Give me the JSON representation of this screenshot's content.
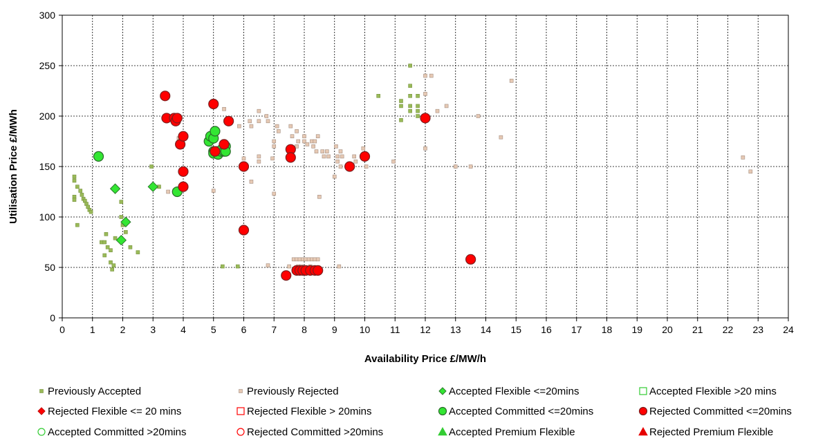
{
  "chart_data": {
    "type": "scatter",
    "xlabel": "Availability Price £/MW/h",
    "ylabel": "Utilisation Price £/MWh",
    "xlim": [
      0,
      24
    ],
    "ylim": [
      0,
      300
    ],
    "x_ticks": [
      0,
      1,
      2,
      3,
      4,
      5,
      6,
      7,
      8,
      9,
      10,
      11,
      12,
      13,
      14,
      15,
      16,
      17,
      18,
      19,
      20,
      21,
      22,
      23,
      24
    ],
    "y_ticks": [
      0,
      50,
      100,
      150,
      200,
      250,
      300
    ],
    "grid": true,
    "legend_position": "bottom",
    "series": [
      {
        "name": "Previously Accepted",
        "marker": "square-small",
        "color": "#9aba59",
        "stroke": "#76923c",
        "points": [
          [
            0.4,
            140
          ],
          [
            0.4,
            136
          ],
          [
            0.4,
            120
          ],
          [
            0.4,
            117
          ],
          [
            0.5,
            130
          ],
          [
            0.5,
            92
          ],
          [
            0.6,
            126
          ],
          [
            0.65,
            122
          ],
          [
            0.7,
            118
          ],
          [
            0.75,
            116
          ],
          [
            0.8,
            113
          ],
          [
            0.85,
            110
          ],
          [
            0.9,
            107
          ],
          [
            0.95,
            105
          ],
          [
            1.3,
            75
          ],
          [
            1.4,
            75
          ],
          [
            1.45,
            83
          ],
          [
            1.4,
            62
          ],
          [
            1.5,
            70
          ],
          [
            1.6,
            67
          ],
          [
            1.6,
            55
          ],
          [
            1.65,
            48
          ],
          [
            1.7,
            52
          ],
          [
            1.75,
            79
          ],
          [
            1.95,
            115
          ],
          [
            1.95,
            100
          ],
          [
            2.0,
            92
          ],
          [
            2.1,
            85
          ],
          [
            2.25,
            70
          ],
          [
            2.5,
            65
          ],
          [
            2.95,
            150
          ],
          [
            3.2,
            130
          ],
          [
            5.3,
            51
          ],
          [
            5.8,
            51
          ],
          [
            10.45,
            220
          ],
          [
            11.2,
            215
          ],
          [
            11.2,
            210
          ],
          [
            11.2,
            196
          ],
          [
            11.5,
            250
          ],
          [
            11.5,
            230
          ],
          [
            11.5,
            220
          ],
          [
            11.5,
            210
          ],
          [
            11.5,
            205
          ],
          [
            11.75,
            220
          ],
          [
            11.75,
            210
          ],
          [
            11.75,
            205
          ],
          [
            11.75,
            200
          ]
        ]
      },
      {
        "name": "Previously Rejected",
        "marker": "square-small",
        "color": "#e6c9b4",
        "stroke": "#a48e80",
        "points": [
          [
            3.5,
            125
          ],
          [
            3.85,
            178
          ],
          [
            5.0,
            126
          ],
          [
            5.35,
            207
          ],
          [
            5.45,
            196
          ],
          [
            5.85,
            190
          ],
          [
            6.0,
            158
          ],
          [
            6.2,
            195
          ],
          [
            6.25,
            190
          ],
          [
            6.25,
            135
          ],
          [
            6.5,
            195
          ],
          [
            6.5,
            205
          ],
          [
            6.5,
            160
          ],
          [
            6.5,
            155
          ],
          [
            6.75,
            200
          ],
          [
            6.8,
            195
          ],
          [
            6.8,
            52
          ],
          [
            6.95,
            158
          ],
          [
            7.0,
            175
          ],
          [
            7.0,
            170
          ],
          [
            7.0,
            123
          ],
          [
            7.1,
            190
          ],
          [
            7.15,
            185
          ],
          [
            7.55,
            190
          ],
          [
            7.6,
            180
          ],
          [
            7.75,
            185
          ],
          [
            7.8,
            175
          ],
          [
            7.75,
            170
          ],
          [
            8.0,
            180
          ],
          [
            8.0,
            175
          ],
          [
            8.1,
            172
          ],
          [
            8.25,
            175
          ],
          [
            8.3,
            170
          ],
          [
            8.35,
            175
          ],
          [
            8.45,
            180
          ],
          [
            8.4,
            165
          ],
          [
            8.5,
            120
          ],
          [
            8.6,
            165
          ],
          [
            8.65,
            160
          ],
          [
            8.75,
            165
          ],
          [
            8.8,
            160
          ],
          [
            9.0,
            140
          ],
          [
            9.05,
            170
          ],
          [
            9.1,
            160
          ],
          [
            9.1,
            155
          ],
          [
            9.2,
            165
          ],
          [
            9.2,
            150
          ],
          [
            9.25,
            160
          ],
          [
            9.6,
            150
          ],
          [
            9.65,
            160
          ],
          [
            9.7,
            155
          ],
          [
            9.95,
            168
          ],
          [
            10.0,
            160
          ],
          [
            10.05,
            150
          ],
          [
            10.95,
            155
          ],
          [
            12.0,
            240
          ],
          [
            12.0,
            222
          ],
          [
            12.0,
            168
          ],
          [
            12.2,
            240
          ],
          [
            12.4,
            205
          ],
          [
            12.7,
            210
          ],
          [
            13.0,
            150
          ],
          [
            13.5,
            150
          ],
          [
            13.75,
            200
          ],
          [
            14.5,
            179
          ],
          [
            14.85,
            235
          ],
          [
            22.5,
            159
          ],
          [
            22.75,
            145
          ],
          [
            7.5,
            51
          ],
          [
            7.65,
            58
          ],
          [
            7.75,
            58
          ],
          [
            7.85,
            58
          ],
          [
            7.95,
            58
          ],
          [
            8.05,
            58
          ],
          [
            8.15,
            58
          ],
          [
            8.25,
            58
          ],
          [
            8.35,
            58
          ],
          [
            8.45,
            58
          ],
          [
            7.8,
            51
          ],
          [
            7.9,
            51
          ],
          [
            8.2,
            51
          ],
          [
            9.15,
            51
          ]
        ]
      },
      {
        "name": "Accepted Flexible <=20mins",
        "marker": "diamond",
        "color": "#33e633",
        "stroke": "#2a7a2a",
        "points": [
          [
            1.75,
            128
          ],
          [
            1.95,
            77
          ],
          [
            2.1,
            95
          ],
          [
            3.0,
            130
          ]
        ]
      },
      {
        "name": "Accepted Flexible >20 mins",
        "marker": "square-open",
        "color": "#33e633",
        "stroke": "#33cc33",
        "points": []
      },
      {
        "name": "Rejected Flexible <= 20 mins",
        "marker": "diamond",
        "color": "#ff0000",
        "stroke": "#c00000",
        "points": []
      },
      {
        "name": "Rejected Flexible > 20mins",
        "marker": "square-open",
        "color": "#ff0000",
        "stroke": "#ff0000",
        "points": []
      },
      {
        "name": "Accepted Committed <=20mins",
        "marker": "circle",
        "color": "#33e633",
        "stroke": "#2a6a2a",
        "points": [
          [
            1.2,
            160
          ],
          [
            3.8,
            125
          ],
          [
            4.85,
            175
          ],
          [
            4.9,
            180
          ],
          [
            5.0,
            178
          ],
          [
            5.05,
            185
          ],
          [
            5.0,
            165
          ],
          [
            5.0,
            163
          ],
          [
            5.1,
            165
          ],
          [
            5.15,
            162
          ],
          [
            5.25,
            165
          ],
          [
            5.3,
            168
          ],
          [
            5.35,
            165
          ],
          [
            5.4,
            170
          ],
          [
            5.4,
            165
          ]
        ]
      },
      {
        "name": "Rejected Committed <=20mins",
        "marker": "circle",
        "color": "#ff0000",
        "stroke": "#7a1e1e",
        "points": [
          [
            3.4,
            220
          ],
          [
            3.45,
            198
          ],
          [
            3.7,
            198
          ],
          [
            3.75,
            195
          ],
          [
            3.8,
            198
          ],
          [
            3.9,
            172
          ],
          [
            4.0,
            180
          ],
          [
            4.0,
            145
          ],
          [
            4.0,
            130
          ],
          [
            5.0,
            212
          ],
          [
            5.05,
            165
          ],
          [
            5.35,
            172
          ],
          [
            5.5,
            195
          ],
          [
            6.0,
            150
          ],
          [
            6.0,
            87
          ],
          [
            7.4,
            42
          ],
          [
            7.55,
            167
          ],
          [
            7.55,
            159
          ],
          [
            7.75,
            47
          ],
          [
            7.85,
            47
          ],
          [
            7.95,
            47
          ],
          [
            8.05,
            47
          ],
          [
            8.2,
            47
          ],
          [
            8.35,
            47
          ],
          [
            8.45,
            47
          ],
          [
            9.5,
            150
          ],
          [
            10.0,
            160
          ],
          [
            12.0,
            198
          ],
          [
            13.5,
            58
          ]
        ]
      },
      {
        "name": "Accepted Committed >20mins",
        "marker": "circle-open",
        "color": "#33e633",
        "stroke": "#33cc33",
        "points": []
      },
      {
        "name": "Rejected Committed >20mins",
        "marker": "circle-open",
        "color": "#ff0000",
        "stroke": "#ff0000",
        "points": []
      },
      {
        "name": "Accepted Premium Flexible",
        "marker": "triangle",
        "color": "#33cc33",
        "stroke": "#33cc33",
        "points": []
      },
      {
        "name": "Rejected Premium Flexible",
        "marker": "triangle",
        "color": "#e60000",
        "stroke": "#e60000",
        "points": []
      }
    ]
  }
}
